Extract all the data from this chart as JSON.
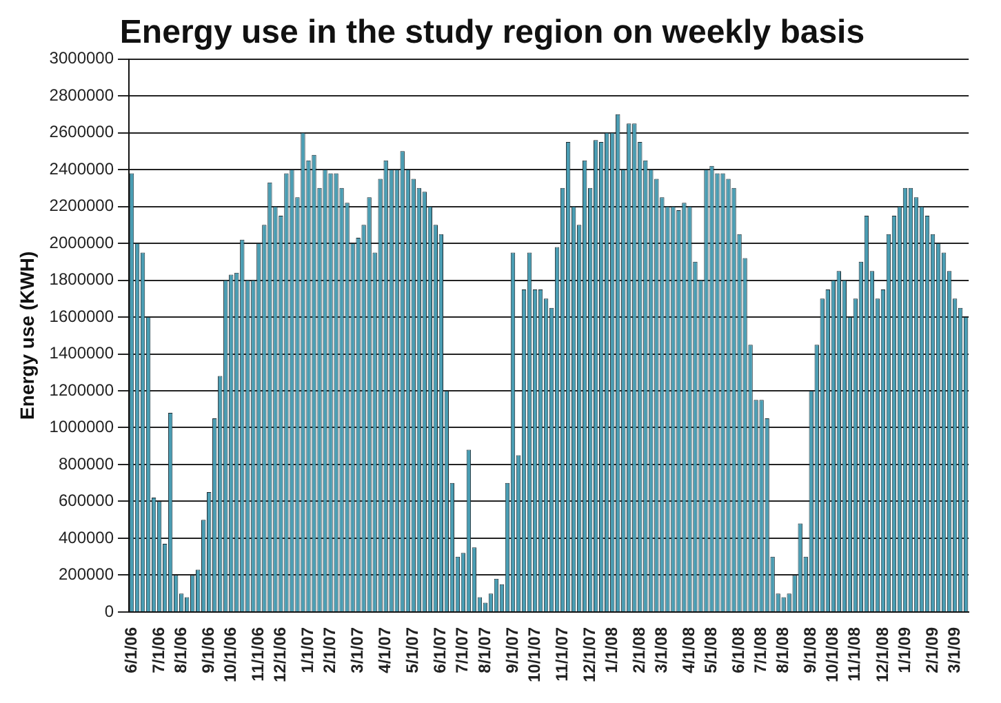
{
  "chart_data": {
    "type": "bar",
    "title": "Energy use in the study region on weekly basis",
    "ylabel": "Energy use (KWH)",
    "categories": [
      "6/1/06",
      null,
      null,
      null,
      null,
      "7/1/06",
      null,
      null,
      null,
      "8/1/06",
      null,
      null,
      null,
      null,
      "9/1/06",
      null,
      null,
      null,
      "10/1/06",
      null,
      null,
      null,
      null,
      "11/1/06",
      null,
      null,
      null,
      "12/1/06",
      null,
      null,
      null,
      null,
      "1/1/07",
      null,
      null,
      null,
      "2/1/07",
      null,
      null,
      null,
      null,
      "3/1/07",
      null,
      null,
      null,
      null,
      "4/1/07",
      null,
      null,
      null,
      null,
      "5/1/07",
      null,
      null,
      null,
      null,
      "6/1/07",
      null,
      null,
      null,
      "7/1/07",
      null,
      null,
      null,
      "8/1/07",
      null,
      null,
      null,
      null,
      "9/1/07",
      null,
      null,
      null,
      "10/1/07",
      null,
      null,
      null,
      null,
      "11/1/07",
      null,
      null,
      null,
      null,
      "12/1/07",
      null,
      null,
      null,
      "1/1/08",
      null,
      null,
      null,
      null,
      "2/1/08",
      null,
      null,
      null,
      "3/1/08",
      null,
      null,
      null,
      null,
      "4/1/08",
      null,
      null,
      null,
      "5/1/08",
      null,
      null,
      null,
      null,
      "6/1/08",
      null,
      null,
      null,
      "7/1/08",
      null,
      null,
      null,
      "8/1/08",
      null,
      null,
      null,
      null,
      "9/1/08",
      null,
      null,
      null,
      "10/1/08",
      null,
      null,
      null,
      "11/1/08",
      null,
      null,
      null,
      null,
      "12/1/08",
      null,
      null,
      null,
      "1/1/09",
      null,
      null,
      null,
      null,
      "2/1/09",
      null,
      null,
      null,
      "3/1/09",
      null,
      null
    ],
    "values": [
      2380000,
      2000000,
      1950000,
      1600000,
      620000,
      600000,
      370000,
      1080000,
      200000,
      100000,
      80000,
      200000,
      230000,
      500000,
      650000,
      1050000,
      1280000,
      1800000,
      1830000,
      1840000,
      2020000,
      1800000,
      1800000,
      2000000,
      2100000,
      2330000,
      2200000,
      2150000,
      2380000,
      2400000,
      2250000,
      2600000,
      2450000,
      2480000,
      2300000,
      2400000,
      2380000,
      2380000,
      2300000,
      2220000,
      2000000,
      2030000,
      2100000,
      2250000,
      1950000,
      2350000,
      2450000,
      2400000,
      2400000,
      2500000,
      2400000,
      2350000,
      2300000,
      2280000,
      2200000,
      2100000,
      2050000,
      1200000,
      700000,
      300000,
      320000,
      880000,
      350000,
      80000,
      50000,
      100000,
      180000,
      150000,
      700000,
      1950000,
      850000,
      1750000,
      1950000,
      1750000,
      1750000,
      1700000,
      1650000,
      1980000,
      2300000,
      2550000,
      2200000,
      2100000,
      2450000,
      2300000,
      2560000,
      2550000,
      2600000,
      2600000,
      2700000,
      2400000,
      2650000,
      2650000,
      2550000,
      2450000,
      2400000,
      2350000,
      2250000,
      2200000,
      2200000,
      2180000,
      2220000,
      2200000,
      1900000,
      1800000,
      2400000,
      2420000,
      2380000,
      2380000,
      2350000,
      2300000,
      2050000,
      1920000,
      1450000,
      1150000,
      1150000,
      1050000,
      300000,
      100000,
      80000,
      100000,
      200000,
      480000,
      300000,
      1200000,
      1450000,
      1700000,
      1750000,
      1800000,
      1850000,
      1800000,
      1600000,
      1700000,
      1900000,
      2150000,
      1850000,
      1700000,
      1750000,
      2050000,
      2150000,
      2200000,
      2300000,
      2300000,
      2250000,
      2200000,
      2150000,
      2050000,
      2000000,
      1950000,
      1850000,
      1700000,
      1650000,
      1600000
    ],
    "color": "#4a9db3",
    "ylim": [
      0,
      3000000
    ],
    "yticks": [
      0,
      200000,
      400000,
      600000,
      800000,
      1000000,
      1200000,
      1400000,
      1600000,
      1800000,
      2000000,
      2200000,
      2400000,
      2600000,
      2800000,
      3000000
    ],
    "grid": "y"
  }
}
